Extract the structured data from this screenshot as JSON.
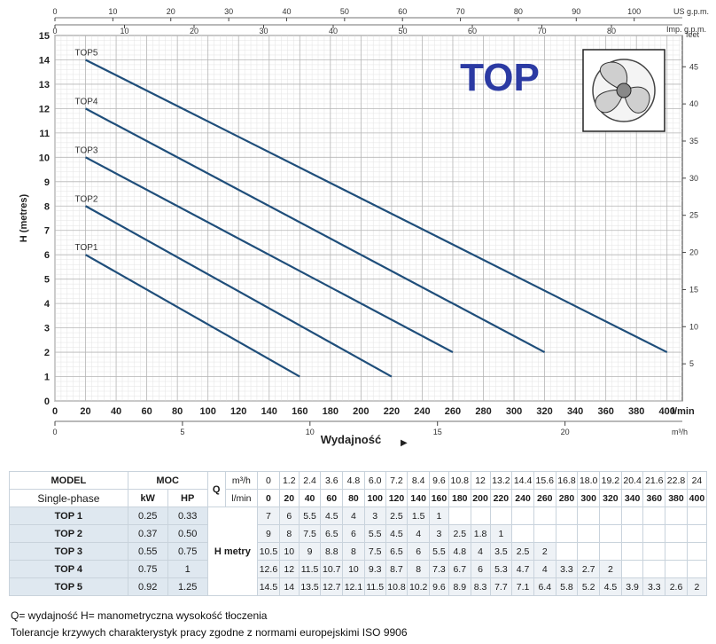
{
  "chart_data": {
    "type": "line",
    "title": "TOP",
    "ylabel": "H (metres)",
    "xlabel": "Wydajność",
    "x_unit": "l/min",
    "ylim": [
      0,
      15
    ],
    "xlim": [
      0,
      410
    ],
    "y_ticks": [
      "0",
      "1",
      "2",
      "3",
      "4",
      "5",
      "6",
      "7",
      "8",
      "9",
      "10",
      "11",
      "12",
      "13",
      "14",
      "15"
    ],
    "x_ticks": [
      "0",
      "20",
      "40",
      "60",
      "80",
      "100",
      "120",
      "140",
      "160",
      "180",
      "200",
      "220",
      "240",
      "260",
      "280",
      "300",
      "320",
      "340",
      "360",
      "380",
      "400"
    ],
    "feet_label": "feet",
    "feet_ticks": [
      "5",
      "10",
      "15",
      "20",
      "25",
      "30",
      "35",
      "40",
      "45"
    ],
    "m3h_label": "m³/h",
    "m3h_ticks": [
      "0",
      "5",
      "10",
      "15",
      "20"
    ],
    "usgpm_label": "US g.p.m.",
    "usgpm_ticks": [
      "0",
      "10",
      "20",
      "30",
      "40",
      "50",
      "60",
      "70",
      "80",
      "90",
      "100"
    ],
    "impgpm_label": "Imp. g.p.m.",
    "impgpm_ticks": [
      "0",
      "10",
      "20",
      "30",
      "40",
      "50",
      "60",
      "70",
      "80"
    ],
    "series": [
      {
        "name": "TOP1",
        "x": [
          20,
          160
        ],
        "y": [
          6,
          1
        ]
      },
      {
        "name": "TOP2",
        "x": [
          20,
          220
        ],
        "y": [
          8,
          1
        ]
      },
      {
        "name": "TOP3",
        "x": [
          20,
          260
        ],
        "y": [
          10,
          2
        ]
      },
      {
        "name": "TOP4",
        "x": [
          20,
          320
        ],
        "y": [
          12,
          2
        ]
      },
      {
        "name": "TOP5",
        "x": [
          20,
          400
        ],
        "y": [
          14,
          2
        ]
      }
    ],
    "line_color": "#1f4e7a",
    "title_color": "#2b3aa3",
    "grid": true
  },
  "table": {
    "model_label": "MODEL",
    "phase_label": "Single-phase",
    "moc_label": "MOC",
    "kw_label": "kW",
    "hp_label": "HP",
    "q_label": "Q",
    "m3h_unit": "m³/h",
    "lmin_unit": "l/min",
    "h_label": "H metry",
    "q_m3h": [
      "0",
      "1.2",
      "2.4",
      "3.6",
      "4.8",
      "6.0",
      "7.2",
      "8.4",
      "9.6",
      "10.8",
      "12",
      "13.2",
      "14.4",
      "15.6",
      "16.8",
      "18.0",
      "19.2",
      "20.4",
      "21.6",
      "22.8",
      "24"
    ],
    "q_lmin": [
      "0",
      "20",
      "40",
      "60",
      "80",
      "100",
      "120",
      "140",
      "160",
      "180",
      "200",
      "220",
      "240",
      "260",
      "280",
      "300",
      "320",
      "340",
      "360",
      "380",
      "400"
    ],
    "rows": [
      {
        "model": "TOP 1",
        "kw": "0.25",
        "hp": "0.33",
        "h": [
          "7",
          "6",
          "5.5",
          "4.5",
          "4",
          "3",
          "2.5",
          "1.5",
          "1",
          "",
          "",
          "",
          "",
          "",
          "",
          "",
          "",
          "",
          "",
          "",
          ""
        ]
      },
      {
        "model": "TOP 2",
        "kw": "0.37",
        "hp": "0.50",
        "h": [
          "9",
          "8",
          "7.5",
          "6.5",
          "6",
          "5.5",
          "4.5",
          "4",
          "3",
          "2.5",
          "1.8",
          "1",
          "",
          "",
          "",
          "",
          "",
          "",
          "",
          "",
          ""
        ]
      },
      {
        "model": "TOP 3",
        "kw": "0.55",
        "hp": "0.75",
        "h": [
          "10.5",
          "10",
          "9",
          "8.8",
          "8",
          "7.5",
          "6.5",
          "6",
          "5.5",
          "4.8",
          "4",
          "3.5",
          "2.5",
          "2",
          "",
          "",
          "",
          "",
          "",
          "",
          ""
        ]
      },
      {
        "model": "TOP 4",
        "kw": "0.75",
        "hp": "1",
        "h": [
          "12.6",
          "12",
          "11.5",
          "10.7",
          "10",
          "9.3",
          "8.7",
          "8",
          "7.3",
          "6.7",
          "6",
          "5.3",
          "4.7",
          "4",
          "3.3",
          "2.7",
          "2",
          "",
          "",
          "",
          ""
        ]
      },
      {
        "model": "TOP 5",
        "kw": "0.92",
        "hp": "1.25",
        "h": [
          "14.5",
          "14",
          "13.5",
          "12.7",
          "12.1",
          "11.5",
          "10.8",
          "10.2",
          "9.6",
          "8.9",
          "8.3",
          "7.7",
          "7.1",
          "6.4",
          "5.8",
          "5.2",
          "4.5",
          "3.9",
          "3.3",
          "2.6",
          "2"
        ]
      }
    ]
  },
  "footer": {
    "line1": "Q= wydajność    H= manometryczna wysokość tłoczenia",
    "line2": "Tolerancje krzywych charakterystyk pracy zgodne z normami europejskimi  ISO  9906"
  }
}
